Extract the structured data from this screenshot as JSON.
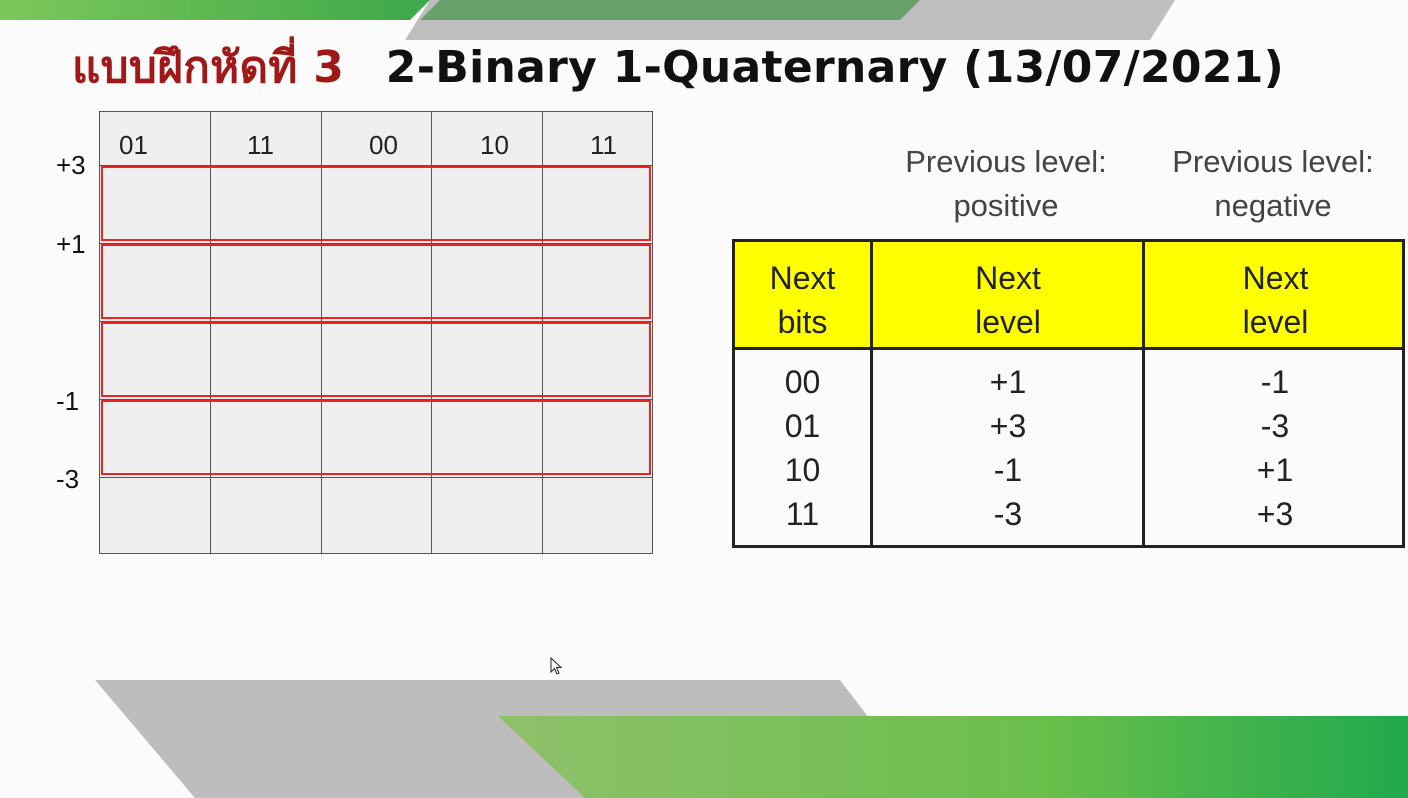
{
  "title": {
    "thai": "แบบฝึกหัดที่ 3",
    "english": "2-Binary 1-Quaternary (13/07/2021)"
  },
  "grid": {
    "column_bits": [
      "01",
      "11",
      "00",
      "10",
      "11"
    ],
    "levels": [
      "+3",
      "+1",
      "-1",
      "-3"
    ]
  },
  "table": {
    "previous_positive": "Previous level:\npositive",
    "previous_negative": "Previous level:\nnegative",
    "headers": [
      "Next\nbits",
      "Next\nlevel",
      "Next\nlevel"
    ],
    "rows": [
      {
        "bits": "00",
        "pos": "+1",
        "neg": "-1"
      },
      {
        "bits": "01",
        "pos": "+3",
        "neg": "-3"
      },
      {
        "bits": "10",
        "pos": "-1",
        "neg": "+1"
      },
      {
        "bits": "11",
        "pos": "-3",
        "neg": "+3"
      }
    ]
  },
  "colors": {
    "title_thai": "#a01818",
    "band_border": "#e22222",
    "header_fill": "#ffff00",
    "accent_green": "#3fae3f",
    "accent_gray": "#bdbdbd"
  }
}
